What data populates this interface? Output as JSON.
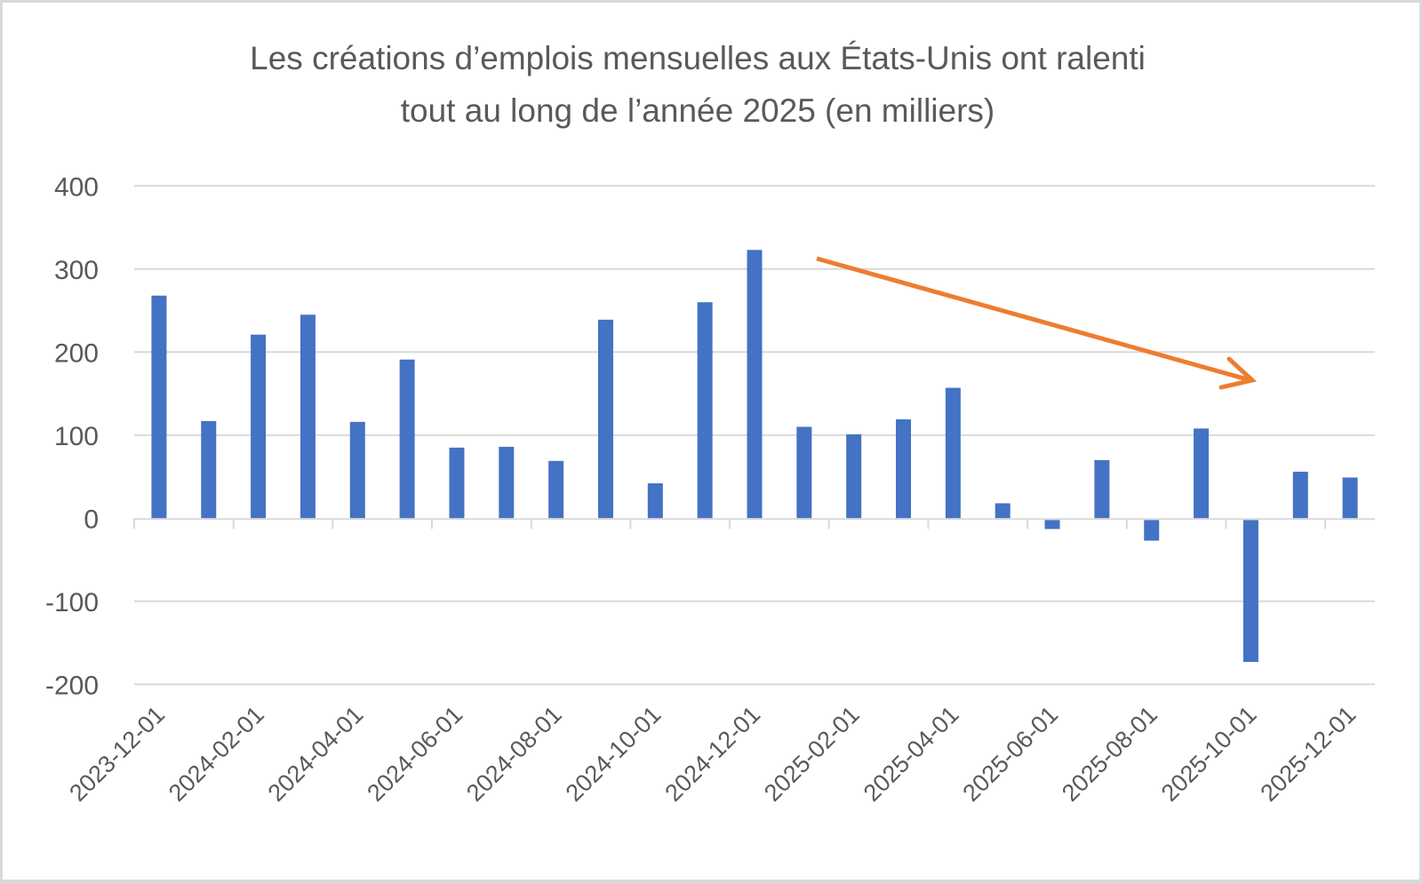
{
  "chart_data": {
    "type": "bar",
    "title": "Les créations d’emplois mensuelles aux États-Unis ont ralenti tout au long de l’année 2025 (en milliers)",
    "title_lines": [
      "Les créations d’emplois mensuelles aux États-Unis ont ralenti",
      "tout au long de l’année 2025 (en milliers)"
    ],
    "xlabel": "",
    "ylabel": "",
    "ylim": [
      -200,
      400
    ],
    "yticks": [
      400,
      300,
      200,
      100,
      0,
      -100,
      -200
    ],
    "grid": true,
    "legend": null,
    "categories": [
      "2023-12-01",
      "2024-01-01",
      "2024-02-01",
      "2024-03-01",
      "2024-04-01",
      "2024-05-01",
      "2024-06-01",
      "2024-07-01",
      "2024-08-01",
      "2024-09-01",
      "2024-10-01",
      "2024-11-01",
      "2024-12-01",
      "2025-01-01",
      "2025-02-01",
      "2025-03-01",
      "2025-04-01",
      "2025-05-01",
      "2025-06-01",
      "2025-07-01",
      "2025-08-01",
      "2025-09-01",
      "2025-10-01",
      "2025-11-01",
      "2025-12-01"
    ],
    "xtick_labels": [
      "2023-12-01",
      "2024-02-01",
      "2024-04-01",
      "2024-06-01",
      "2024-08-01",
      "2024-10-01",
      "2024-12-01",
      "2025-02-01",
      "2025-04-01",
      "2025-06-01",
      "2025-08-01",
      "2025-10-01",
      "2025-12-01"
    ],
    "series": [
      {
        "name": "Créations d’emplois (milliers)",
        "color": "#4472C4",
        "values": [
          268,
          117,
          221,
          245,
          116,
          191,
          85,
          86,
          69,
          239,
          42,
          260,
          323,
          110,
          101,
          119,
          157,
          18,
          -13,
          70,
          -27,
          108,
          -173,
          56,
          49
        ]
      }
    ],
    "annotations": [
      {
        "type": "arrow",
        "color": "#ED7D31",
        "description": "downward trend arrow from 2025-01 toward 2025-11"
      }
    ]
  },
  "colors": {
    "bar": "#4472C4",
    "arrow": "#ED7D31",
    "gridline": "#d9d9d9",
    "text": "#595959",
    "frame": "#d9d9d9"
  }
}
